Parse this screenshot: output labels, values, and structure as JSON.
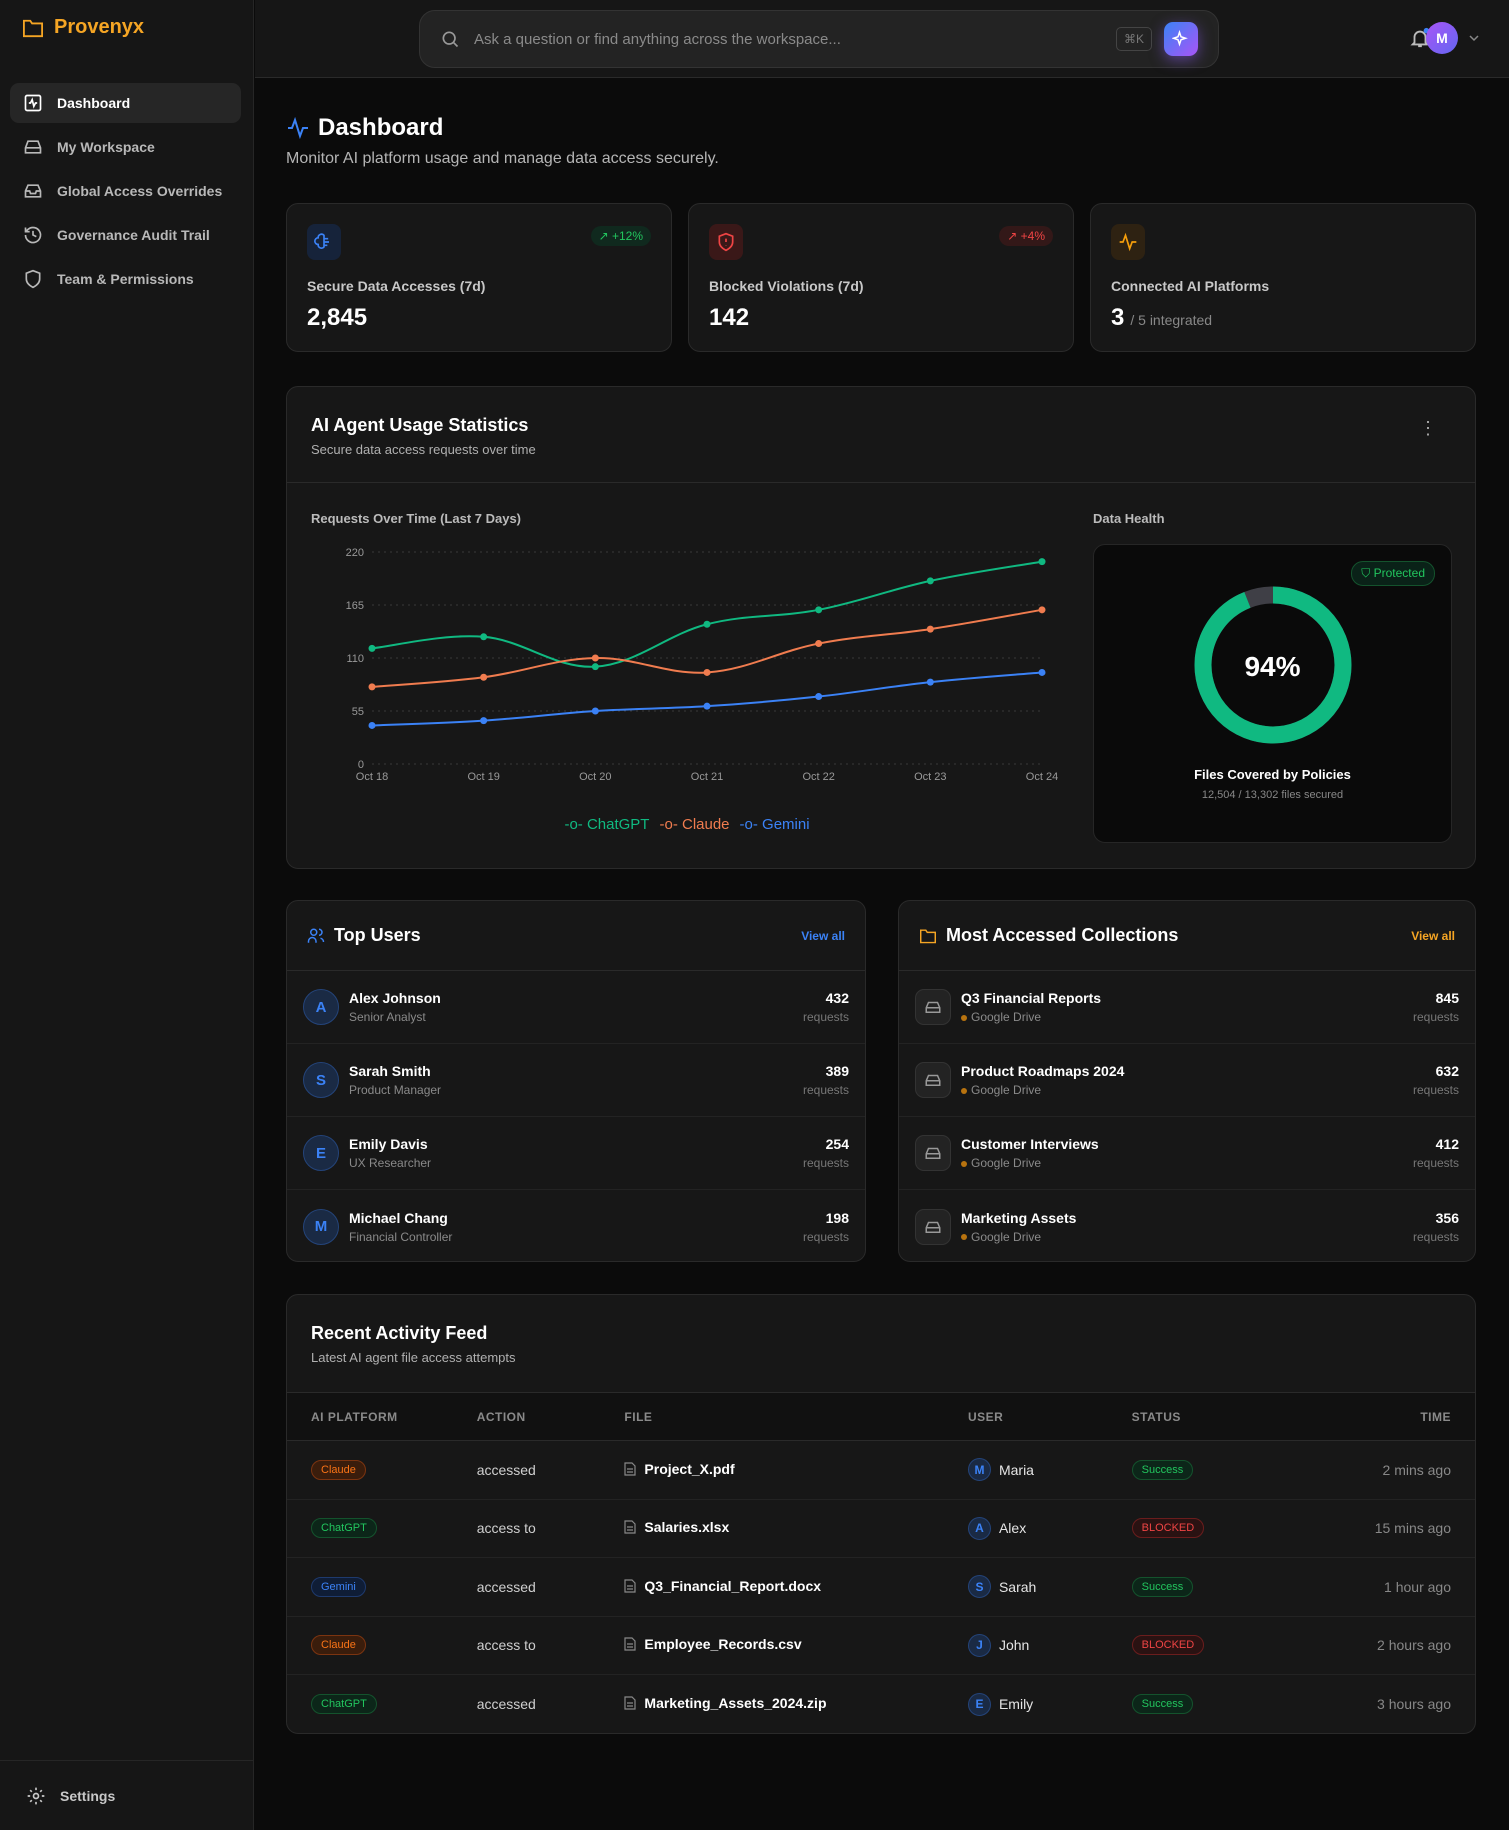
{
  "app": {
    "name": "Provenyx"
  },
  "sidebar": {
    "items": [
      {
        "label": "Dashboard",
        "icon": "activity-square-icon",
        "active": true
      },
      {
        "label": "My Workspace",
        "icon": "hard-drive-icon"
      },
      {
        "label": "Global Access Overrides",
        "icon": "inbox-icon"
      },
      {
        "label": "Governance Audit Trail",
        "icon": "history-icon"
      },
      {
        "label": "Team & Permissions",
        "icon": "shield-icon"
      }
    ],
    "settings": "Settings"
  },
  "topbar": {
    "search_placeholder": "Ask a question or find anything across the workspace...",
    "shortcut": "⌘K",
    "avatar": "M"
  },
  "page": {
    "title": "Dashboard",
    "subtitle": "Monitor AI platform usage and manage data access securely."
  },
  "stats": [
    {
      "label": "Secure Data Accesses (7d)",
      "value": "2,845",
      "badge": "+12%",
      "color": "#3b82f6"
    },
    {
      "label": "Blocked Violations (7d)",
      "value": "142",
      "badge": "+4%",
      "color": "#ef4444"
    },
    {
      "label": "Connected AI Platforms",
      "value": "3",
      "suffix": "/ 5 integrated",
      "color": "#f59e0b"
    }
  ],
  "usage": {
    "title": "AI Agent Usage Statistics",
    "subtitle": "Secure data access requests over time",
    "health_title": "Data Health",
    "protected": "Protected",
    "percent": "94%",
    "percent_value": 94,
    "covered_title": "Files Covered by Policies",
    "covered_sub": "12,504 / 13,302 files secured"
  },
  "chart_data": {
    "type": "line",
    "title": "Requests Over Time (Last 7 Days)",
    "categories": [
      "Oct 18",
      "Oct 19",
      "Oct 20",
      "Oct 21",
      "Oct 22",
      "Oct 23",
      "Oct 24"
    ],
    "yticks": [
      0,
      55,
      110,
      165,
      220
    ],
    "ylim": [
      0,
      220
    ],
    "grid": true,
    "legend": "bottom",
    "series": [
      {
        "name": "ChatGPT",
        "color": "#10b981",
        "values": [
          120,
          132,
          101,
          145,
          160,
          190,
          210
        ]
      },
      {
        "name": "Claude",
        "color": "#f07c4f",
        "values": [
          80,
          90,
          110,
          95,
          125,
          140,
          160
        ]
      },
      {
        "name": "Gemini",
        "color": "#3b82f6",
        "values": [
          40,
          45,
          55,
          60,
          70,
          85,
          95
        ]
      }
    ]
  },
  "top_users": {
    "title": "Top Users",
    "view_all": "View all",
    "unit": "requests",
    "items": [
      {
        "initial": "A",
        "name": "Alex Johnson",
        "role": "Senior Analyst",
        "count": "432"
      },
      {
        "initial": "S",
        "name": "Sarah Smith",
        "role": "Product Manager",
        "count": "389"
      },
      {
        "initial": "E",
        "name": "Emily Davis",
        "role": "UX Researcher",
        "count": "254"
      },
      {
        "initial": "M",
        "name": "Michael Chang",
        "role": "Financial Controller",
        "count": "198"
      }
    ]
  },
  "collections": {
    "title": "Most Accessed Collections",
    "view_all": "View all",
    "unit": "requests",
    "items": [
      {
        "name": "Q3 Financial Reports",
        "source": "Google Drive",
        "count": "845"
      },
      {
        "name": "Product Roadmaps 2024",
        "source": "Google Drive",
        "count": "632"
      },
      {
        "name": "Customer Interviews",
        "source": "Google Drive",
        "count": "412"
      },
      {
        "name": "Marketing Assets",
        "source": "Google Drive",
        "count": "356"
      }
    ]
  },
  "activity": {
    "title": "Recent Activity Feed",
    "subtitle": "Latest AI agent file access attempts",
    "columns": [
      "AI PLATFORM",
      "ACTION",
      "FILE",
      "USER",
      "STATUS",
      "TIME"
    ],
    "rows": [
      {
        "platform": "Claude",
        "action": "accessed",
        "file": "Project_X.pdf",
        "initial": "M",
        "user": "Maria",
        "status": "Success",
        "time": "2 mins ago"
      },
      {
        "platform": "ChatGPT",
        "action": "access to",
        "file": "Salaries.xlsx",
        "initial": "A",
        "user": "Alex",
        "status": "BLOCKED",
        "time": "15 mins ago"
      },
      {
        "platform": "Gemini",
        "action": "accessed",
        "file": "Q3_Financial_Report.docx",
        "initial": "S",
        "user": "Sarah",
        "status": "Success",
        "time": "1 hour ago"
      },
      {
        "platform": "Claude",
        "action": "access to",
        "file": "Employee_Records.csv",
        "initial": "J",
        "user": "John",
        "status": "BLOCKED",
        "time": "2 hours ago"
      },
      {
        "platform": "ChatGPT",
        "action": "accessed",
        "file": "Marketing_Assets_2024.zip",
        "initial": "E",
        "user": "Emily",
        "status": "Success",
        "time": "3 hours ago"
      }
    ]
  }
}
